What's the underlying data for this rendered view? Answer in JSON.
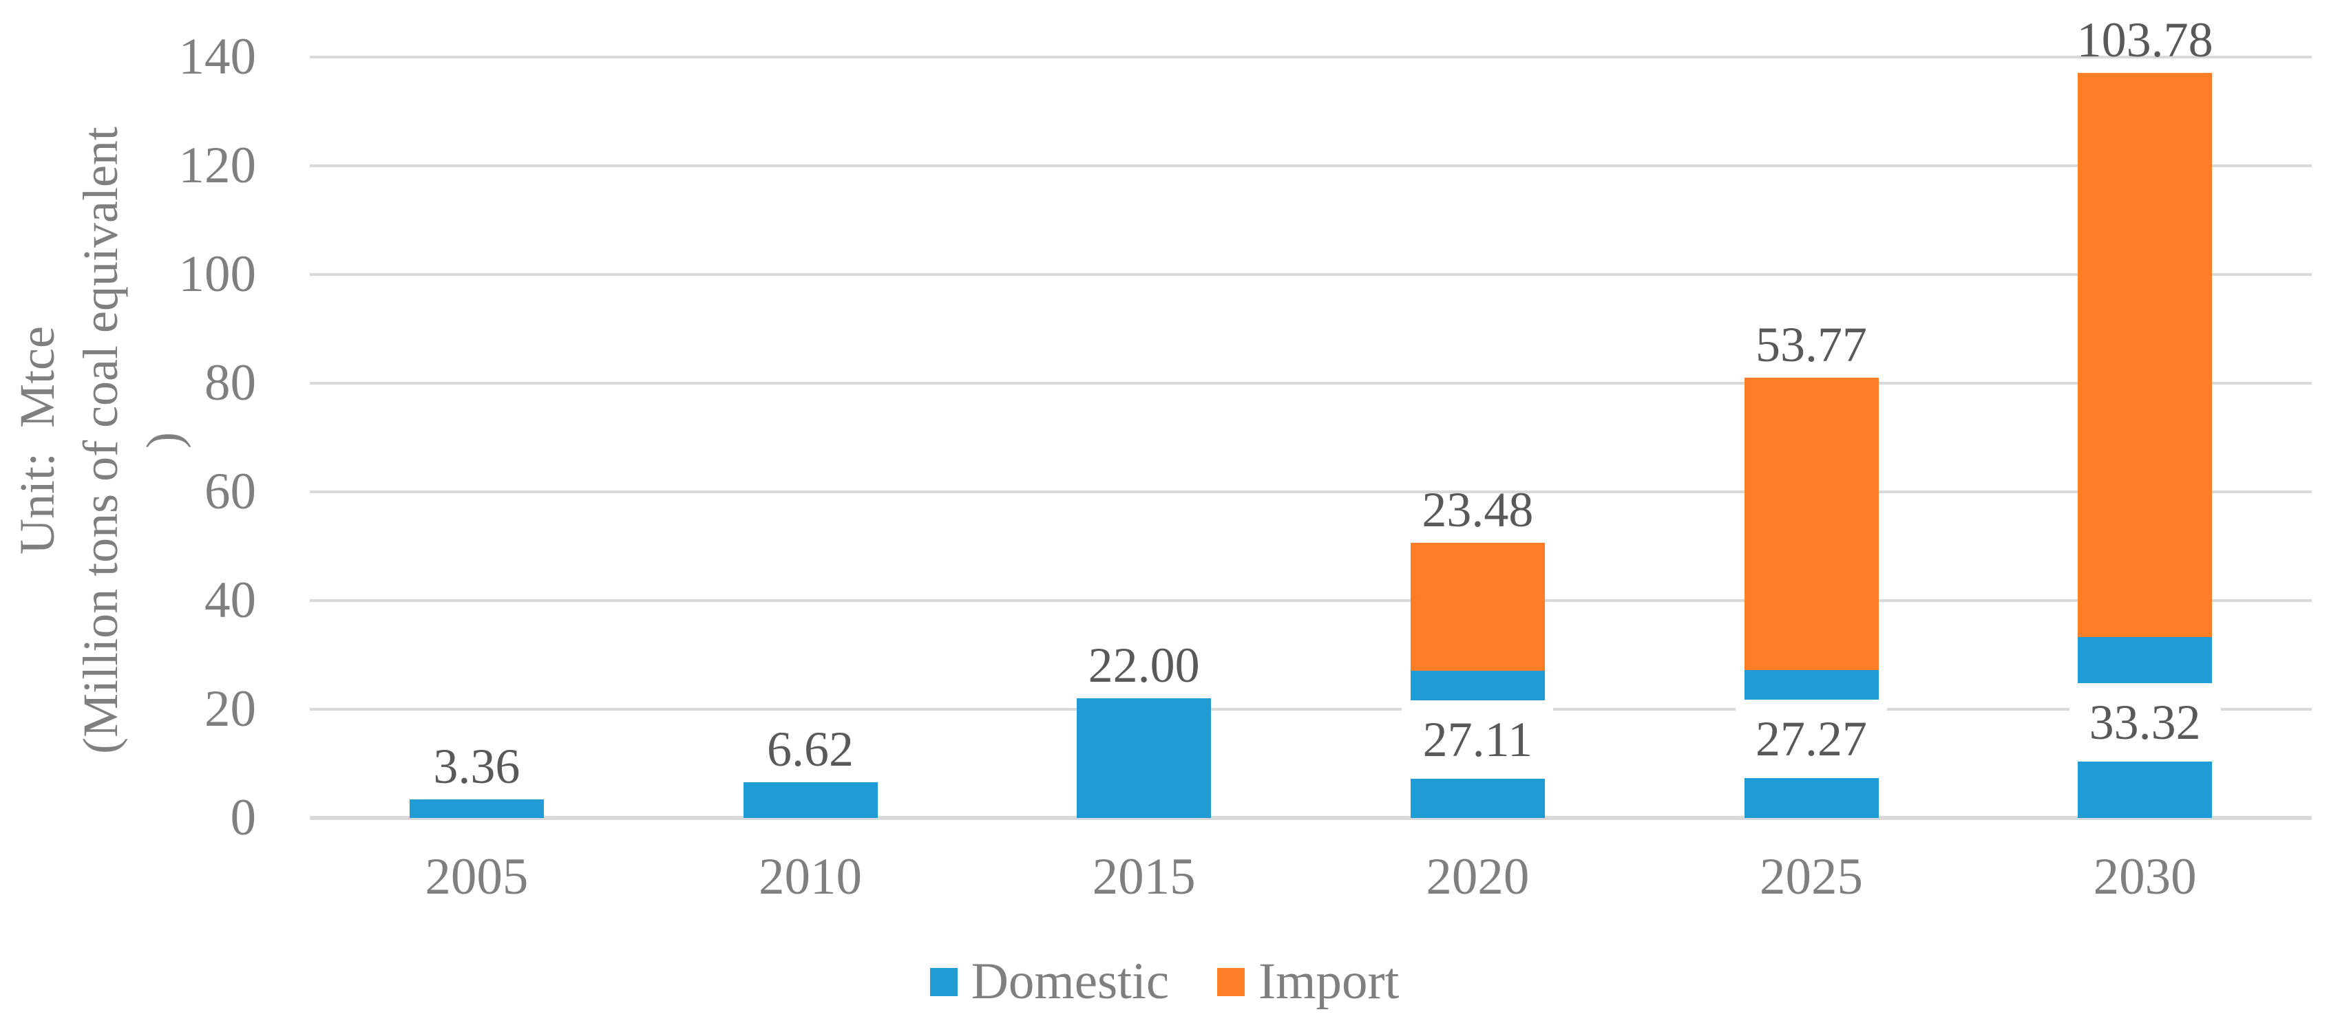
{
  "chart_data": {
    "type": "bar",
    "stacked": true,
    "title": "",
    "categories": [
      "2005",
      "2010",
      "2015",
      "2020",
      "2025",
      "2030"
    ],
    "series": [
      {
        "name": "Domestic",
        "color": "#1F9BD5",
        "values": [
          3.36,
          6.62,
          22.0,
          27.11,
          27.27,
          33.32
        ],
        "labels": [
          "3.36",
          "6.62",
          "22.00",
          "27.11",
          "27.27",
          "33.32"
        ]
      },
      {
        "name": "Import",
        "color": "#FD7E27",
        "values": [
          0,
          0,
          0,
          23.48,
          53.77,
          103.78
        ],
        "labels": [
          null,
          null,
          null,
          "23.48",
          "53.77",
          "103.78"
        ]
      }
    ],
    "axis_title_lines": [
      "Unit:  Mtce",
      "(Million tons of coal equivalent",
      ")"
    ],
    "ylim": [
      0,
      140
    ],
    "y_ticks": [
      0,
      20,
      40,
      60,
      80,
      100,
      120,
      140
    ],
    "grid": true,
    "legend_position": "bottom",
    "colors": {
      "gridline": "#D9D9D9",
      "tick_text": "#7F7F7F",
      "data_label_text": "#595959",
      "background": "#FFFFFF"
    }
  }
}
